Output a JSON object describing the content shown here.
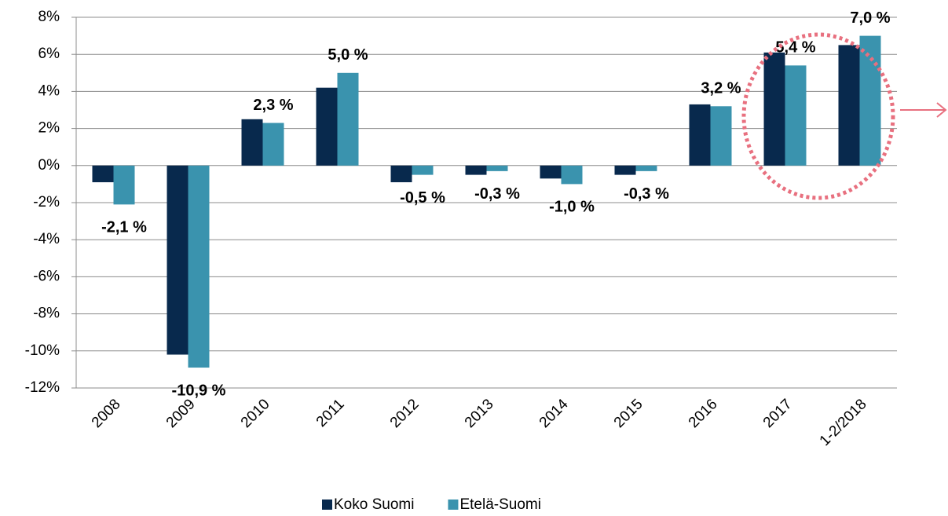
{
  "chart_data": {
    "type": "bar",
    "categories": [
      "2008",
      "2009",
      "2010",
      "2011",
      "2012",
      "2013",
      "2014",
      "2015",
      "2016",
      "2017",
      "1-2/2018"
    ],
    "series": [
      {
        "name": "Koko Suomi",
        "color": "#08294d",
        "values": [
          -0.9,
          -10.2,
          2.5,
          4.2,
          -0.9,
          -0.5,
          -0.7,
          -0.5,
          3.3,
          6.1,
          6.5
        ]
      },
      {
        "name": "Etelä-Suomi",
        "color": "#3a93ae",
        "values": [
          -2.1,
          -10.9,
          2.3,
          5.0,
          -0.5,
          -0.3,
          -1.0,
          -0.3,
          3.2,
          5.4,
          7.0
        ],
        "value_labels": [
          "-2,1 %",
          "-10,9 %",
          "2,3 %",
          "5,0 %",
          "-0,5 %",
          "-0,3 %",
          "-1,0 %",
          "-0,3 %",
          "3,2 %",
          "5,4 %",
          "7,0 %"
        ]
      }
    ],
    "ylim": [
      -12,
      8
    ],
    "yticks": [
      {
        "value": -12,
        "label": "-12%"
      },
      {
        "value": -10,
        "label": "-10%"
      },
      {
        "value": -8,
        "label": "-8%"
      },
      {
        "value": -6,
        "label": "-6%"
      },
      {
        "value": -4,
        "label": "-4%"
      },
      {
        "value": -2,
        "label": "-2%"
      },
      {
        "value": 0,
        "label": "0%"
      },
      {
        "value": 2,
        "label": "2%"
      },
      {
        "value": 4,
        "label": "4%"
      },
      {
        "value": 6,
        "label": "6%"
      },
      {
        "value": 8,
        "label": "8%"
      }
    ],
    "grid": true
  }
}
